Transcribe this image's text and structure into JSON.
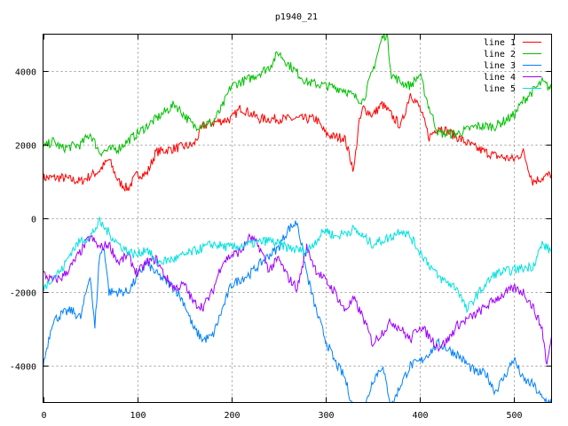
{
  "chart_data": {
    "type": "line",
    "title": "p1940_21",
    "xlabel": "",
    "ylabel": "",
    "xlim": [
      0,
      540
    ],
    "ylim": [
      -5000,
      5000
    ],
    "xticks": [
      0,
      100,
      200,
      300,
      400,
      500
    ],
    "yticks": [
      -4000,
      -2000,
      0,
      2000,
      4000
    ],
    "grid": true,
    "legend_position": "top-right",
    "series": [
      {
        "name": "line 1",
        "color": "#ff0000",
        "x": [
          0,
          20,
          40,
          60,
          70,
          80,
          90,
          100,
          110,
          120,
          140,
          160,
          170,
          180,
          200,
          210,
          230,
          250,
          270,
          290,
          300,
          310,
          320,
          330,
          335,
          340,
          350,
          360,
          370,
          380,
          390,
          400,
          410,
          420,
          440,
          460,
          480,
          500,
          510,
          520,
          540
        ],
        "y": [
          1100,
          1100,
          1000,
          1300,
          1600,
          1000,
          800,
          1200,
          1200,
          1800,
          1900,
          2000,
          2500,
          2600,
          2700,
          3000,
          2700,
          2700,
          2700,
          2700,
          2300,
          2200,
          2200,
          1300,
          2500,
          3000,
          2800,
          3100,
          2800,
          2500,
          3400,
          3000,
          2200,
          2500,
          2200,
          1900,
          1700,
          1600,
          1800,
          1000,
          1200
        ]
      },
      {
        "name": "line 2",
        "color": "#00c000",
        "x": [
          0,
          10,
          20,
          40,
          50,
          60,
          80,
          100,
          120,
          140,
          150,
          160,
          180,
          190,
          200,
          220,
          240,
          250,
          260,
          280,
          300,
          320,
          330,
          340,
          350,
          360,
          365,
          370,
          380,
          390,
          400,
          410,
          420,
          440,
          460,
          480,
          500,
          510,
          530,
          540
        ],
        "y": [
          1900,
          2100,
          1900,
          2000,
          2300,
          1800,
          1900,
          2300,
          2700,
          3100,
          2800,
          2500,
          2600,
          3000,
          3600,
          3800,
          4100,
          4500,
          4200,
          3700,
          3600,
          3500,
          3300,
          3200,
          4000,
          4900,
          5000,
          3900,
          3700,
          3600,
          3900,
          3000,
          2300,
          2300,
          2500,
          2500,
          2800,
          3200,
          3700,
          3500
        ]
      },
      {
        "name": "line 3",
        "color": "#0080ff",
        "x": [
          0,
          10,
          20,
          30,
          40,
          50,
          55,
          60,
          65,
          70,
          90,
          100,
          110,
          120,
          140,
          150,
          160,
          170,
          180,
          190,
          200,
          220,
          240,
          250,
          260,
          270,
          280,
          290,
          300,
          310,
          320,
          330,
          340,
          350,
          360,
          370,
          380,
          390,
          400,
          420,
          440,
          460,
          470,
          480,
          490,
          500,
          510,
          520,
          530,
          540
        ],
        "y": [
          -4000,
          -2800,
          -2600,
          -2500,
          -2700,
          -1500,
          -3000,
          -1000,
          -800,
          -2000,
          -2000,
          -1600,
          -1200,
          -1500,
          -1900,
          -2300,
          -3000,
          -3300,
          -3200,
          -2500,
          -1800,
          -1500,
          -1000,
          -800,
          -300,
          -100,
          -1500,
          -2500,
          -3300,
          -3900,
          -4300,
          -5200,
          -5300,
          -4400,
          -4000,
          -5100,
          -4500,
          -4000,
          -3900,
          -3400,
          -3700,
          -4200,
          -4200,
          -4700,
          -4300,
          -3800,
          -4400,
          -4500,
          -4900,
          -5000
        ]
      },
      {
        "name": "line 4",
        "color": "#a000ff",
        "x": [
          0,
          10,
          20,
          30,
          40,
          50,
          60,
          70,
          80,
          90,
          100,
          110,
          120,
          130,
          140,
          150,
          160,
          170,
          180,
          190,
          200,
          210,
          220,
          230,
          240,
          250,
          260,
          270,
          280,
          290,
          300,
          310,
          320,
          330,
          340,
          350,
          360,
          370,
          380,
          390,
          400,
          410,
          420,
          430,
          440,
          460,
          480,
          500,
          510,
          520,
          530,
          535,
          540
        ],
        "y": [
          -1500,
          -1700,
          -1600,
          -1300,
          -900,
          -500,
          -800,
          -700,
          -1200,
          -1000,
          -1500,
          -1200,
          -1100,
          -1600,
          -1900,
          -1800,
          -2300,
          -2400,
          -2000,
          -1200,
          -1000,
          -900,
          -500,
          -800,
          -1400,
          -1100,
          -1600,
          -1900,
          -800,
          -1400,
          -1700,
          -2000,
          -2500,
          -2200,
          -2700,
          -3400,
          -3100,
          -2800,
          -3000,
          -3300,
          -2900,
          -3200,
          -3500,
          -3300,
          -2900,
          -2600,
          -2200,
          -1900,
          -2000,
          -2400,
          -3000,
          -4000,
          -3200
        ]
      },
      {
        "name": "line 5",
        "color": "#00e0e0",
        "x": [
          0,
          10,
          20,
          30,
          40,
          50,
          60,
          70,
          80,
          90,
          100,
          110,
          120,
          140,
          160,
          180,
          200,
          220,
          240,
          260,
          280,
          290,
          300,
          310,
          330,
          350,
          370,
          380,
          390,
          400,
          420,
          440,
          450,
          460,
          480,
          500,
          520,
          530,
          540
        ],
        "y": [
          -1900,
          -1600,
          -1400,
          -900,
          -600,
          -500,
          -100,
          -400,
          -700,
          -900,
          -1000,
          -800,
          -1200,
          -1100,
          -900,
          -700,
          -800,
          -700,
          -600,
          -800,
          -900,
          -600,
          -300,
          -500,
          -300,
          -700,
          -500,
          -300,
          -500,
          -900,
          -1600,
          -1900,
          -2500,
          -2100,
          -1500,
          -1400,
          -1300,
          -700,
          -900
        ]
      }
    ]
  }
}
